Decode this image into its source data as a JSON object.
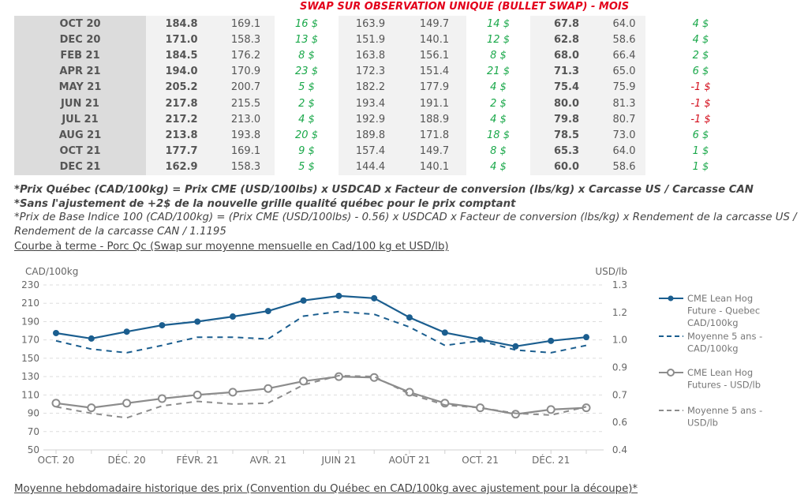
{
  "swap_table": {
    "title": "SWAP SUR OBSERVATION UNIQUE (BULLET SWAP) - MOIS",
    "rows": [
      {
        "month": "OCT 20",
        "v1": "184.8",
        "v2": "169.1",
        "d1": "16 $",
        "v3": "163.9",
        "v4": "149.7",
        "d2": "14 $",
        "v5": "67.8",
        "v6": "64.0",
        "d3": "4 $"
      },
      {
        "month": "DEC 20",
        "v1": "171.0",
        "v2": "158.3",
        "d1": "13 $",
        "v3": "151.9",
        "v4": "140.1",
        "d2": "12 $",
        "v5": "62.8",
        "v6": "58.6",
        "d3": "4 $"
      },
      {
        "month": "FEB 21",
        "v1": "184.5",
        "v2": "176.2",
        "d1": "8 $",
        "v3": "163.8",
        "v4": "156.1",
        "d2": "8 $",
        "v5": "68.0",
        "v6": "66.4",
        "d3": "2 $"
      },
      {
        "month": "APR 21",
        "v1": "194.0",
        "v2": "170.9",
        "d1": "23 $",
        "v3": "172.3",
        "v4": "151.4",
        "d2": "21 $",
        "v5": "71.3",
        "v6": "65.0",
        "d3": "6 $"
      },
      {
        "month": "MAY 21",
        "v1": "205.2",
        "v2": "200.7",
        "d1": "5 $",
        "v3": "182.2",
        "v4": "177.9",
        "d2": "4 $",
        "v5": "75.4",
        "v6": "75.9",
        "d3": "-1 $"
      },
      {
        "month": "JUN 21",
        "v1": "217.8",
        "v2": "215.5",
        "d1": "2 $",
        "v3": "193.4",
        "v4": "191.1",
        "d2": "2 $",
        "v5": "80.0",
        "v6": "81.3",
        "d3": "-1 $"
      },
      {
        "month": "JUL 21",
        "v1": "217.2",
        "v2": "213.0",
        "d1": "4 $",
        "v3": "192.9",
        "v4": "188.9",
        "d2": "4 $",
        "v5": "79.8",
        "v6": "80.7",
        "d3": "-1 $"
      },
      {
        "month": "AUG 21",
        "v1": "213.8",
        "v2": "193.8",
        "d1": "20 $",
        "v3": "189.8",
        "v4": "171.8",
        "d2": "18 $",
        "v5": "78.5",
        "v6": "73.0",
        "d3": "6 $"
      },
      {
        "month": "OCT 21",
        "v1": "177.7",
        "v2": "169.1",
        "d1": "9 $",
        "v3": "157.4",
        "v4": "149.7",
        "d2": "8 $",
        "v5": "65.3",
        "v6": "64.0",
        "d3": "1 $"
      },
      {
        "month": "DEC 21",
        "v1": "162.9",
        "v2": "158.3",
        "d1": "5 $",
        "v3": "144.4",
        "v4": "140.1",
        "d2": "4 $",
        "v5": "60.0",
        "v6": "58.6",
        "d3": "1 $"
      }
    ],
    "colors": {
      "positive": "#1aa84a",
      "negative": "#d4101e",
      "title": "#e3001b"
    }
  },
  "notes": {
    "line1": "*Prix Québec (CAD/100kg) = Prix CME (USD/100lbs) x USDCAD x Facteur de conversion (lbs/kg) x Carcasse US / Carcasse CAN",
    "line2": "*Sans l'ajustement de +2$ de la nouvelle grille qualité québec pour le prix comptant",
    "line3": "*Prix de Base Indice 100 (CAD/100kg) = (Prix CME (USD/100lbs) - 0.56) x USDCAD x Facteur de conversion (lbs/kg) x Rendement de la carcasse US /",
    "line4": "Rendement de la carcasse CAN / 1.1195"
  },
  "chart_section_title": "Courbe à terme - Porc Qc (Swap sur moyenne mensuelle en Cad/100 kg et USD/lb)",
  "bottom_section_title": "Moyenne hebdomadaire historique des prix (Convention du Québec en CAD/100kg avec ajustement pour la découpe)*",
  "chart_data": {
    "type": "line",
    "title": "Courbe à terme - Porc Qc (Swap sur moyenne mensuelle en Cad/100 kg et USD/lb)",
    "xlabel": "",
    "ylabel": "CAD/100kg",
    "y2label": "USD/lb",
    "x": [
      "Oct 20",
      "Nov 20",
      "Dec 20",
      "Jan 21",
      "Feb 21",
      "Mar 21",
      "Apr 21",
      "May 21",
      "Jun 21",
      "Jul 21",
      "Aug 21",
      "Sep 21",
      "Oct 21",
      "Nov 21",
      "Dec 21",
      "Jan 22"
    ],
    "x_tick_labels": [
      "OCT. 20",
      "DÉC. 20",
      "FÉVR. 21",
      "AVR. 21",
      "JUIN 21",
      "AOÛT 21",
      "OCT. 21",
      "DÉC. 21"
    ],
    "x_tick_label_every": 2,
    "ylim": [
      50,
      230
    ],
    "y_ticks": [
      "230",
      "210",
      "190",
      "170",
      "150",
      "130",
      "110",
      "90",
      "70",
      "50"
    ],
    "y2lim": [
      0.4,
      1.3
    ],
    "y2_ticks": [
      "1.3",
      "1.2",
      "1.0",
      "0.9",
      "0.7",
      "0.6",
      "0.4"
    ],
    "grid": true,
    "legend_position": "right",
    "series": [
      {
        "name": "CME Lean Hog Future - Quebec CAD/100kg",
        "legend_lines": [
          "CME Lean Hog",
          "Future - Quebec",
          "CAD/100kg"
        ],
        "axis": "left",
        "color": "#1b5e8f",
        "style": "solid",
        "marker": "filled-circle",
        "values": [
          177.5,
          171.5,
          179,
          186,
          190,
          195.5,
          201.5,
          213,
          218,
          215.5,
          194.5,
          178,
          170.5,
          163,
          169,
          173
        ]
      },
      {
        "name": "Moyenne 5 ans - CAD/100kg",
        "legend_lines": [
          "Moyenne 5 ans -",
          "CAD/100kg"
        ],
        "axis": "left",
        "color": "#1b5e8f",
        "style": "dashed",
        "marker": "none",
        "values": [
          169,
          160,
          156,
          164,
          173,
          173,
          171,
          196,
          201,
          198,
          184,
          164,
          169,
          159,
          156,
          164
        ]
      },
      {
        "name": "CME Lean Hog Futures - USD/lb",
        "legend_lines": [
          "CME Lean Hog",
          "Futures - USD/lb"
        ],
        "axis": "right",
        "color": "#8c8c8c",
        "style": "solid",
        "marker": "open-circle",
        "values": [
          0.655,
          0.63,
          0.655,
          0.68,
          0.7,
          0.715,
          0.735,
          0.775,
          0.8,
          0.795,
          0.715,
          0.655,
          0.63,
          0.595,
          0.62,
          0.63
        ]
      },
      {
        "name": "Moyenne 5 ans - USD/lb",
        "legend_lines": [
          "Moyenne 5 ans -",
          "USD/lb"
        ],
        "axis": "right",
        "color": "#8c8c8c",
        "style": "dashed",
        "marker": "none",
        "values": [
          0.635,
          0.6,
          0.575,
          0.64,
          0.665,
          0.65,
          0.655,
          0.755,
          0.805,
          0.8,
          0.705,
          0.645,
          0.63,
          0.6,
          0.59,
          0.635
        ]
      }
    ]
  }
}
